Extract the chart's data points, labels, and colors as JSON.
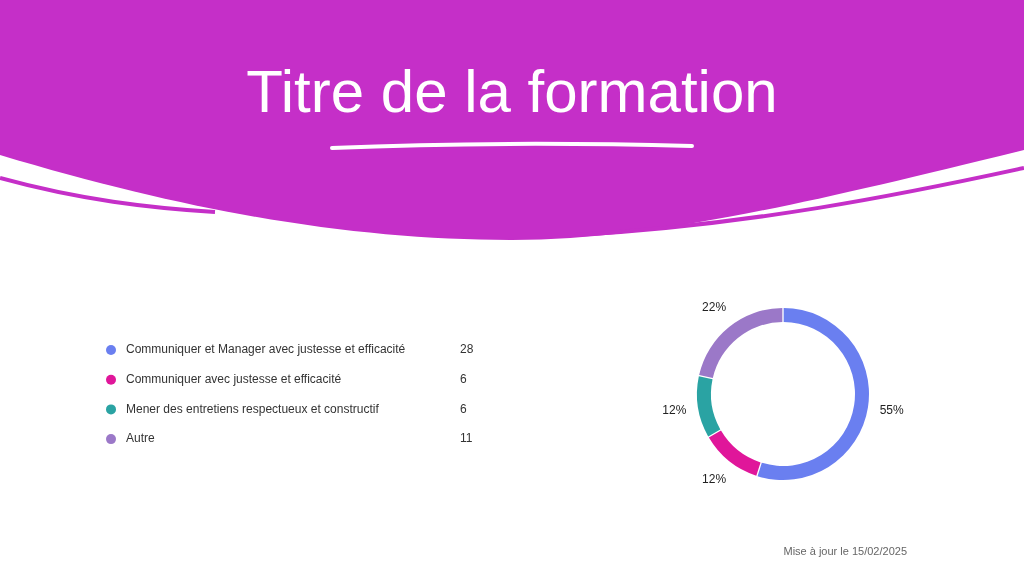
{
  "chart_data": {
    "type": "donut",
    "title": "Titre de la formation",
    "categories": [
      "Communiquer et Manager avec justesse et efficacité",
      "Communiquer avec justesse et efficacité",
      "Mener des entretiens respectueux et constructif",
      "Autre"
    ],
    "values": [
      28,
      6,
      6,
      11
    ],
    "colors": [
      "#6a7ff0",
      "#e0169a",
      "#2aa3a3",
      "#9b78c8"
    ],
    "data_labels": true,
    "legend": "left",
    "annotations": [
      {
        "text": "55%",
        "x": "Communiquer et Manager avec justesse et efficacité"
      },
      {
        "text": "12%",
        "x": "Communiquer avec justesse et efficacité"
      },
      {
        "text": "12%",
        "x": "Mener des entretiens respectueux et constructif"
      },
      {
        "text": "22%",
        "x": "Autre"
      },
      "Mise à jour le 15/02/2025"
    ]
  }
}
